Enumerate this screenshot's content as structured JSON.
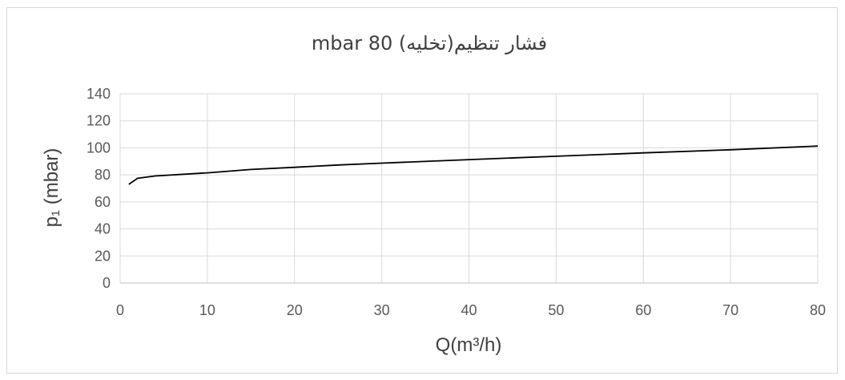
{
  "chart_data": {
    "type": "line",
    "title": "فشار تنظیم(تخلیه) 80 mbar",
    "xlabel": "Q(m³/h)",
    "ylabel": "p₁ (mbar)",
    "xlim": [
      0,
      80
    ],
    "ylim": [
      0,
      140
    ],
    "xticks": [
      0,
      10,
      20,
      30,
      40,
      50,
      60,
      70,
      80
    ],
    "yticks": [
      0,
      20,
      40,
      60,
      80,
      100,
      120,
      140
    ],
    "grid": true,
    "legend": "none",
    "series": [
      {
        "color": "#000000",
        "x": [
          1,
          2,
          4,
          10,
          15,
          20,
          25,
          30,
          40,
          50,
          60,
          70,
          80
        ],
        "y": [
          73,
          77.5,
          79.2,
          81.5,
          84,
          85.6,
          87.3,
          88.7,
          91.3,
          93.8,
          96.3,
          98.6,
          101.3
        ]
      }
    ]
  }
}
